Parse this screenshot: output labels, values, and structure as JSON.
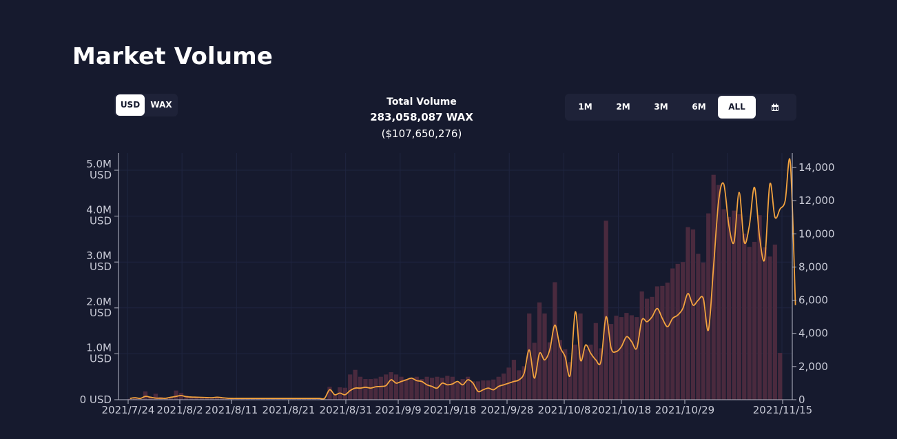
{
  "header": {
    "title": "Market Volume"
  },
  "currency_toggle": {
    "usd": "USD",
    "wax": "WAX",
    "selected": "USD"
  },
  "totals": {
    "label": "Total Volume",
    "wax": "283,058,087 WAX",
    "usd": "($107,650,276)"
  },
  "range": {
    "options": [
      "1M",
      "2M",
      "3M",
      "6M",
      "ALL"
    ],
    "selected": "ALL",
    "calendar_icon": "calendar-icon"
  },
  "colors": {
    "bar": "#4a2a3e",
    "line": "#f3a33f",
    "background": "#161a2e",
    "grid": "#1f2540"
  },
  "chart_data": {
    "type": "bar",
    "x_tick_labels": [
      "2021/7/24",
      "2021/8/2",
      "2021/8/11",
      "2021/8/21",
      "2021/8/31",
      "2021/9/9",
      "2021/9/18",
      "2021/9/28",
      "2021/10/8",
      "2021/10/18",
      "2021/10/29",
      "2021/11/15"
    ],
    "y_left_ticks": [
      {
        "l1": "5.0M",
        "l2": "USD"
      },
      {
        "l1": "4.0M",
        "l2": "USD"
      },
      {
        "l1": "3.0M",
        "l2": "USD"
      },
      {
        "l1": "2.0M",
        "l2": "USD"
      },
      {
        "l1": "1.0M",
        "l2": "USD"
      },
      {
        "l1": "0 USD",
        "l2": ""
      }
    ],
    "y_right_ticks": [
      "14,000",
      "12,000",
      "10,000",
      "8,000",
      "6,000",
      "4,000",
      "2,000",
      "0"
    ],
    "ylim_left": [
      0,
      5000000
    ],
    "ylim_right": [
      0,
      14000
    ],
    "grid": true,
    "series": [
      {
        "type": "bar",
        "axis": "left",
        "values": [
          20000,
          35000,
          40000,
          180000,
          60000,
          130000,
          60000,
          30000,
          40000,
          200000,
          150000,
          90000,
          60000,
          60000,
          50000,
          40000,
          30000,
          40000,
          30000,
          20000,
          20000,
          20000,
          20000,
          20000,
          20000,
          20000,
          20000,
          20000,
          20000,
          20000,
          20000,
          20000,
          20000,
          20000,
          20000,
          20000,
          20000,
          20000,
          20000,
          280000,
          120000,
          270000,
          260000,
          550000,
          650000,
          500000,
          450000,
          450000,
          460000,
          500000,
          550000,
          600000,
          550000,
          500000,
          450000,
          480000,
          500000,
          450000,
          500000,
          480000,
          500000,
          480000,
          520000,
          500000,
          380000,
          450000,
          500000,
          400000,
          400000,
          420000,
          420000,
          440000,
          500000,
          570000,
          700000,
          870000,
          640000,
          730000,
          1880000,
          1240000,
          2120000,
          1880000,
          1250000,
          2560000,
          1300000,
          1100000,
          820000,
          1200000,
          1880000,
          1100000,
          1200000,
          1670000,
          1120000,
          3900000,
          1650000,
          1830000,
          1800000,
          1890000,
          1840000,
          1800000,
          2360000,
          2200000,
          2240000,
          2470000,
          2480000,
          2550000,
          2860000,
          2960000,
          3000000,
          3760000,
          3710000,
          3180000,
          2990000,
          4060000,
          4900000,
          4680000,
          4150000,
          3980000,
          4120000,
          4040000,
          3620000,
          3330000,
          3440000,
          4020000,
          3320000,
          3120000,
          3380000,
          1020000
        ],
        "name": ""
      },
      {
        "type": "line",
        "axis": "right",
        "values": [
          80,
          120,
          80,
          200,
          150,
          100,
          90,
          90,
          150,
          200,
          250,
          180,
          160,
          150,
          140,
          130,
          120,
          150,
          120,
          90,
          80,
          80,
          80,
          80,
          80,
          80,
          80,
          80,
          80,
          80,
          80,
          80,
          80,
          80,
          80,
          80,
          80,
          80,
          80,
          600,
          300,
          400,
          300,
          550,
          700,
          700,
          750,
          700,
          780,
          800,
          850,
          1200,
          1000,
          1100,
          1200,
          1300,
          1150,
          1100,
          900,
          800,
          700,
          1000,
          900,
          950,
          1100,
          900,
          1200,
          1000,
          500,
          600,
          700,
          600,
          800,
          900,
          1000,
          1100,
          1200,
          1600,
          3000,
          1300,
          2800,
          2400,
          3000,
          4500,
          3200,
          2600,
          1500,
          5300,
          2400,
          3300,
          2800,
          2400,
          2300,
          5000,
          3100,
          2900,
          3200,
          3800,
          3500,
          3100,
          4800,
          4700,
          5000,
          5500,
          4900,
          4400,
          4900,
          5100,
          5500,
          6400,
          5700,
          6000,
          6100,
          4200,
          8000,
          12000,
          13000,
          10500,
          9500,
          12500,
          9500,
          10500,
          12800,
          9800,
          8500,
          13000,
          11000,
          11500,
          12000,
          14300,
          5700
        ],
        "name": ""
      }
    ]
  }
}
